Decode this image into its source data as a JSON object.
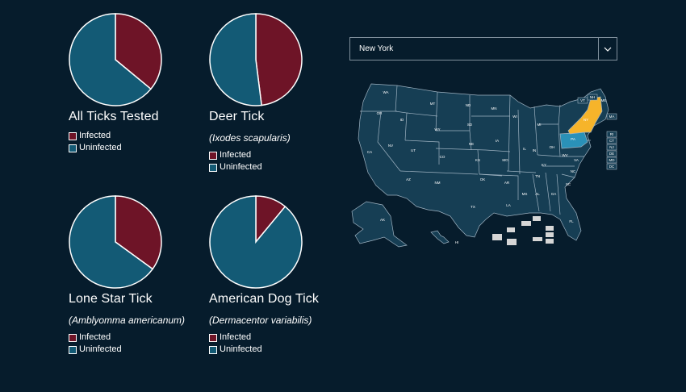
{
  "colors": {
    "background": "#061c2c",
    "infected": "#6e1427",
    "uninfected": "#135a75",
    "selected_state": "#f6b42a",
    "highlighted_state": "#2a91b8",
    "territory": "#d6d6d6"
  },
  "legend": {
    "infected_label": "Infected",
    "uninfected_label": "Uninfected"
  },
  "state_select": {
    "value": "New York",
    "icon": "chevron-down-icon"
  },
  "chart_data": [
    {
      "type": "pie",
      "title": "All Ticks Tested",
      "subtitle": "",
      "categories": [
        "Infected",
        "Uninfected"
      ],
      "values": [
        36,
        64
      ]
    },
    {
      "type": "pie",
      "title": "Deer Tick",
      "subtitle": "(Ixodes scapularis)",
      "categories": [
        "Infected",
        "Uninfected"
      ],
      "values": [
        48,
        52
      ]
    },
    {
      "type": "pie",
      "title": "Lone Star Tick",
      "subtitle": "(Amblyomma americanum)",
      "categories": [
        "Infected",
        "Uninfected"
      ],
      "values": [
        35,
        65
      ]
    },
    {
      "type": "pie",
      "title": "American Dog Tick",
      "subtitle": "(Dermacentor variabilis)",
      "categories": [
        "Infected",
        "Uninfected"
      ],
      "values": [
        11,
        89
      ]
    }
  ],
  "map": {
    "selected_state": "NY",
    "highlighted_state": "PA",
    "state_labels": [
      "WA",
      "OR",
      "CA",
      "NV",
      "ID",
      "MT",
      "WY",
      "UT",
      "AZ",
      "CO",
      "NM",
      "ND",
      "SD",
      "NE",
      "KS",
      "OK",
      "TX",
      "MN",
      "IA",
      "MO",
      "AR",
      "LA",
      "WI",
      "IL",
      "MI",
      "IN",
      "OH",
      "KY",
      "TN",
      "MS",
      "AL",
      "GA",
      "FL",
      "SC",
      "NC",
      "VA",
      "WV",
      "PA",
      "NY",
      "ME",
      "AK",
      "HI"
    ],
    "small_state_labels": [
      "VT",
      "NH",
      "MA",
      "RI",
      "CT",
      "NJ",
      "DE",
      "MD",
      "DC"
    ]
  }
}
